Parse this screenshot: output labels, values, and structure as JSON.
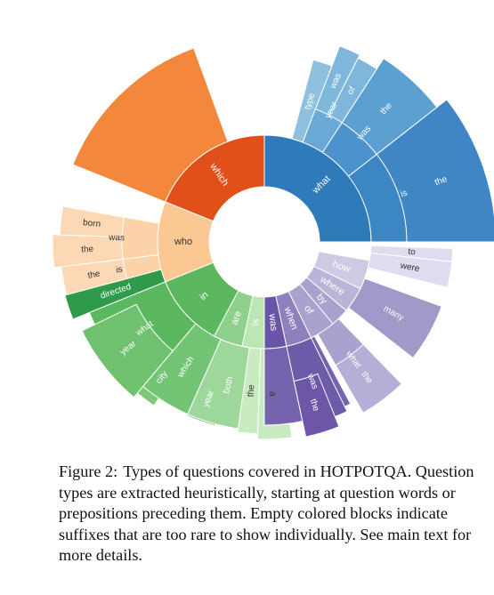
{
  "figure": {
    "label": "Figure 2:",
    "caption": "Types of questions covered in HOTPOTQA. Question types are extracted heuristically, starting at question words or prepositions preceding them. Empty colored blocks indicate suffixes that are too rare to show individually. See main text for more details."
  },
  "chart_data": {
    "type": "sunburst",
    "levels": [
      "first word",
      "second word",
      "third word"
    ],
    "colors": {
      "what": "#2f7ab9",
      "which": "#e0511a",
      "who": "#fbc793",
      "in": "#5cb85f",
      "are": "#8fd18c",
      "is": "#bde6b5",
      "was": "#6954a5",
      "when": "#8e80bd",
      "of": "#a9a1ce",
      "by": "#a9a1ce",
      "where": "#bab4d8",
      "how": "#cdcae4",
      "other": "#e6e5f0"
    },
    "wedges": [
      {
        "level": 1,
        "label": "what",
        "color": "#2f7ab9",
        "text_color": "#ffffff"
      },
      {
        "level": 2,
        "parent": "what",
        "label": "is",
        "color": "#3c86c3",
        "text_color": "#ffffff"
      },
      {
        "level": 3,
        "parent": "what is",
        "label": "the",
        "color": "#3f87c4",
        "text_color": "#ffffff"
      },
      {
        "level": 2,
        "parent": "what",
        "label": "was",
        "color": "#4c93cb",
        "text_color": "#ffffff"
      },
      {
        "level": 3,
        "parent": "what was",
        "label": "the",
        "color": "#5ba0d0",
        "text_color": "#ffffff"
      },
      {
        "level": 2,
        "parent": "what",
        "label": "year",
        "color": "#6aa8d5",
        "text_color": "#ffffff"
      },
      {
        "level": 3,
        "parent": "what year",
        "label": "was",
        "color": "#7eb6dc",
        "text_color": "#ffffff"
      },
      {
        "level": 3,
        "parent": "what year",
        "label": "of",
        "color": "#7eb6dc",
        "text_color": "#ffffff"
      },
      {
        "level": 2,
        "parent": "what",
        "label": "type",
        "color": "#8fc0e0",
        "text_color": "#ffffff"
      },
      {
        "level": 1,
        "label": "which",
        "color": "#e0511a",
        "text_color": "#ffffff"
      },
      {
        "level": 2,
        "parent": "which",
        "label": "",
        "color": "#f3873c"
      },
      {
        "level": 1,
        "label": "who",
        "color": "#fbc793",
        "text_color": "#333333"
      },
      {
        "level": 2,
        "parent": "who",
        "label": "was",
        "color": "#fcd3a8",
        "text_color": "#333333"
      },
      {
        "level": 3,
        "parent": "who was",
        "label": "the",
        "color": "#fcd9b4",
        "text_color": "#333333"
      },
      {
        "level": 3,
        "parent": "who was",
        "label": "born",
        "color": "#fcd9b4",
        "text_color": "#333333"
      },
      {
        "level": 2,
        "parent": "who",
        "label": "is",
        "color": "#fcd3a8",
        "text_color": "#333333"
      },
      {
        "level": 3,
        "parent": "who is",
        "label": "the",
        "color": "#fcd9b4",
        "text_color": "#333333"
      },
      {
        "level": 2,
        "parent": "who",
        "label": "directed",
        "color": "#2f9a4a",
        "text_color": "#ffffff"
      },
      {
        "level": 1,
        "label": "in",
        "color": "#5cb85f",
        "text_color": "#ffffff"
      },
      {
        "level": 2,
        "parent": "in",
        "label": "what",
        "color": "#5cb85f",
        "text_color": "#ffffff"
      },
      {
        "level": 3,
        "parent": "in what",
        "label": "year",
        "color": "#6fc16f",
        "text_color": "#ffffff"
      },
      {
        "level": 3,
        "parent": "in what",
        "label": "city",
        "color": "#7fc87a",
        "text_color": "#ffffff"
      },
      {
        "level": 2,
        "parent": "in",
        "label": "which",
        "color": "#74c476",
        "text_color": "#ffffff"
      },
      {
        "level": 3,
        "parent": "in which",
        "label": "year",
        "color": "#8ccf87",
        "text_color": "#ffffff"
      },
      {
        "level": 1,
        "label": "are",
        "color": "#8fd18c",
        "text_color": "#ffffff"
      },
      {
        "level": 2,
        "parent": "are",
        "label": "both",
        "color": "#9dd79a",
        "text_color": "#ffffff"
      },
      {
        "level": 1,
        "label": "is",
        "color": "#bde6b5",
        "text_color": "#ffffff"
      },
      {
        "level": 2,
        "parent": "is",
        "label": "a",
        "color": "#c9ebc2",
        "text_color": "#333333"
      },
      {
        "level": 2,
        "parent": "is",
        "label": "the",
        "color": "#c9ebc2",
        "text_color": "#333333"
      },
      {
        "level": 1,
        "label": "was",
        "color": "#6954a5",
        "text_color": "#ffffff"
      },
      {
        "level": 2,
        "parent": "was",
        "label": "",
        "color": "#7564ad"
      },
      {
        "level": 1,
        "label": "when",
        "color": "#8e80bd",
        "text_color": "#ffffff"
      },
      {
        "level": 2,
        "parent": "when",
        "label": "was",
        "color": "#6d5aa8",
        "text_color": "#ffffff"
      },
      {
        "level": 3,
        "parent": "when was",
        "label": "the",
        "color": "#6b56a7",
        "text_color": "#ffffff"
      },
      {
        "level": 1,
        "label": "of",
        "color": "#a9a1ce",
        "text_color": "#ffffff"
      },
      {
        "level": 2,
        "parent": "of",
        "label": "what",
        "color": "#a9a1ce",
        "text_color": "#ffffff"
      },
      {
        "level": 3,
        "parent": "of what",
        "label": "the",
        "color": "#b5aed6",
        "text_color": "#ffffff"
      },
      {
        "level": 1,
        "label": "by",
        "color": "#a9a1ce",
        "text_color": "#ffffff"
      },
      {
        "level": 1,
        "label": "where",
        "color": "#bab4d8",
        "text_color": "#ffffff"
      },
      {
        "level": 2,
        "parent": "where",
        "label": "many",
        "color": "#a19ac9",
        "text_color": "#ffffff"
      },
      {
        "level": 1,
        "label": "how",
        "color": "#cdcae4",
        "text_color": "#ffffff"
      },
      {
        "level": 2,
        "parent": "how",
        "label": "were",
        "color": "#dedcee",
        "text_color": "#333333"
      },
      {
        "level": 2,
        "parent": "how",
        "label": "to",
        "color": "#dedcee",
        "text_color": "#333333"
      }
    ]
  }
}
